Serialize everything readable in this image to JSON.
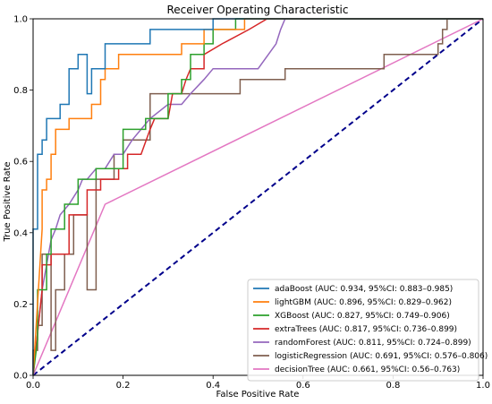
{
  "chart_data": {
    "type": "line",
    "title": "Receiver Operating Characteristic",
    "xlabel": "False Positive Rate",
    "ylabel": "True Positive Rate",
    "xlim": [
      0,
      1
    ],
    "ylim": [
      0,
      1
    ],
    "x_ticks": [
      "0.0",
      "0.2",
      "0.4",
      "0.6",
      "0.8",
      "1.0"
    ],
    "y_ticks": [
      "0.0",
      "0.2",
      "0.4",
      "0.6",
      "0.8",
      "1.0"
    ],
    "grid": false,
    "legend_position": "lower-right",
    "chance_line": {
      "x": [
        0,
        1
      ],
      "y": [
        0,
        1
      ],
      "color": "#00008b",
      "style": "dashed"
    },
    "series": [
      {
        "name": "adaBoost (AUC: 0.934, 95%CI: 0.883–0.985)",
        "color": "#1f77b4",
        "x": [
          0,
          0,
          0.01,
          0.01,
          0.02,
          0.02,
          0.03,
          0.03,
          0.06,
          0.06,
          0.08,
          0.08,
          0.1,
          0.1,
          0.12,
          0.12,
          0.13,
          0.13,
          0.16,
          0.16,
          0.26,
          0.26,
          0.34,
          0.34,
          0.4,
          0.4,
          0.55,
          0.55,
          1.0
        ],
        "y": [
          0,
          0.41,
          0.41,
          0.62,
          0.62,
          0.66,
          0.66,
          0.72,
          0.72,
          0.76,
          0.76,
          0.86,
          0.86,
          0.9,
          0.9,
          0.79,
          0.79,
          0.86,
          0.86,
          0.93,
          0.93,
          0.97,
          0.97,
          0.97,
          0.97,
          1.0,
          1.0,
          1.0,
          1.0
        ]
      },
      {
        "name": "lightGBM (AUC: 0.896, 95%CI: 0.829–0.962)",
        "color": "#ff7f0e",
        "x": [
          0,
          0.02,
          0.02,
          0.03,
          0.03,
          0.04,
          0.04,
          0.05,
          0.05,
          0.08,
          0.08,
          0.13,
          0.13,
          0.15,
          0.15,
          0.16,
          0.16,
          0.19,
          0.19,
          0.33,
          0.33,
          0.38,
          0.38,
          0.47,
          0.47,
          0.62,
          0.62,
          1.0
        ],
        "y": [
          0,
          0.41,
          0.52,
          0.52,
          0.55,
          0.55,
          0.62,
          0.62,
          0.69,
          0.69,
          0.72,
          0.72,
          0.76,
          0.76,
          0.83,
          0.83,
          0.86,
          0.86,
          0.9,
          0.9,
          0.93,
          0.93,
          0.97,
          0.97,
          1.0,
          1.0,
          1.0,
          1.0
        ]
      },
      {
        "name": "XGBoost (AUC: 0.827, 95%CI: 0.749–0.906)",
        "color": "#2ca02c",
        "x": [
          0,
          0.01,
          0.01,
          0.03,
          0.03,
          0.04,
          0.04,
          0.07,
          0.07,
          0.1,
          0.1,
          0.14,
          0.14,
          0.2,
          0.2,
          0.25,
          0.25,
          0.3,
          0.3,
          0.33,
          0.33,
          0.35,
          0.35,
          0.38,
          0.38,
          0.4,
          0.4,
          0.45,
          0.45,
          0.5,
          0.5,
          1.0
        ],
        "y": [
          0,
          0.1,
          0.24,
          0.24,
          0.34,
          0.34,
          0.41,
          0.41,
          0.48,
          0.48,
          0.55,
          0.55,
          0.58,
          0.58,
          0.69,
          0.69,
          0.72,
          0.72,
          0.79,
          0.79,
          0.83,
          0.83,
          0.9,
          0.9,
          0.93,
          0.93,
          0.97,
          0.97,
          1.0,
          1.0,
          1.0,
          1.0
        ]
      },
      {
        "name": "extraTrees (AUC: 0.817, 95%CI: 0.736–0.899)",
        "color": "#d62728",
        "x": [
          0,
          0.02,
          0.02,
          0.04,
          0.04,
          0.08,
          0.08,
          0.12,
          0.12,
          0.15,
          0.15,
          0.19,
          0.19,
          0.21,
          0.21,
          0.24,
          0.26,
          0.27,
          0.3,
          0.31,
          0.33,
          0.34,
          0.35,
          0.38,
          0.38,
          0.42,
          0.48,
          0.52,
          0.55,
          1.0
        ],
        "y": [
          0,
          0.24,
          0.31,
          0.31,
          0.34,
          0.34,
          0.45,
          0.45,
          0.52,
          0.52,
          0.55,
          0.55,
          0.58,
          0.58,
          0.62,
          0.62,
          0.69,
          0.72,
          0.72,
          0.79,
          0.79,
          0.83,
          0.86,
          0.86,
          0.9,
          0.93,
          0.97,
          1.0,
          1.0,
          1.0
        ]
      },
      {
        "name": "randomForest (AUC: 0.811, 95%CI: 0.724–0.899)",
        "color": "#9467bd",
        "x": [
          0,
          0.02,
          0.03,
          0.04,
          0.05,
          0.06,
          0.08,
          0.1,
          0.11,
          0.12,
          0.14,
          0.16,
          0.18,
          0.2,
          0.22,
          0.24,
          0.26,
          0.3,
          0.33,
          0.35,
          0.38,
          0.4,
          0.45,
          0.5,
          0.54,
          0.55,
          0.56,
          0.58,
          1.0
        ],
        "y": [
          0,
          0.24,
          0.31,
          0.38,
          0.41,
          0.45,
          0.48,
          0.52,
          0.55,
          0.55,
          0.58,
          0.58,
          0.62,
          0.62,
          0.66,
          0.69,
          0.72,
          0.76,
          0.76,
          0.79,
          0.83,
          0.86,
          0.86,
          0.86,
          0.93,
          0.97,
          1.0,
          1.0,
          1.0
        ]
      },
      {
        "name": "logisticRegression (AUC: 0.691, 95%CI: 0.576–0.806)",
        "color": "#7f5f4f",
        "x": [
          0,
          0,
          0.01,
          0.01,
          0.02,
          0.02,
          0.04,
          0.04,
          0.05,
          0.05,
          0.07,
          0.07,
          0.09,
          0.09,
          0.12,
          0.12,
          0.14,
          0.14,
          0.18,
          0.18,
          0.2,
          0.2,
          0.26,
          0.26,
          0.46,
          0.46,
          0.5,
          0.5,
          0.56,
          0.56,
          0.78,
          0.78,
          0.9,
          0.9,
          0.91,
          0.91,
          0.92,
          0.92,
          1.0
        ],
        "y": [
          0,
          0.07,
          0.07,
          0.14,
          0.14,
          0.34,
          0.34,
          0.07,
          0.07,
          0.24,
          0.24,
          0.34,
          0.34,
          0.45,
          0.45,
          0.24,
          0.24,
          0.55,
          0.55,
          0.62,
          0.62,
          0.66,
          0.66,
          0.79,
          0.79,
          0.83,
          0.83,
          0.83,
          0.83,
          0.86,
          0.86,
          0.9,
          0.9,
          0.93,
          0.93,
          0.97,
          0.97,
          1.0,
          1.0
        ]
      },
      {
        "name": "decisionTree (AUC: 0.661, 95%CI: 0.56–0.763)",
        "color": "#e377c2",
        "x": [
          0,
          0.16,
          1.0
        ],
        "y": [
          0,
          0.48,
          1.0
        ]
      }
    ]
  }
}
